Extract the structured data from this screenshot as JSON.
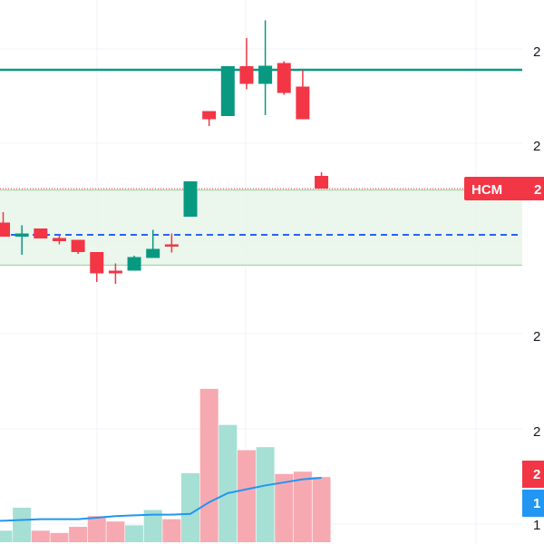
{
  "chart_data": {
    "type": "candlestick",
    "title": "",
    "xlabel": "",
    "ylabel": "",
    "symbol_label": "HCM",
    "price_axis_labels": [
      "2",
      "2",
      "2",
      "2"
    ],
    "volume_axis_labels": [
      "2",
      "1",
      "1"
    ],
    "grid": true,
    "colors": {
      "up": "#089981",
      "down": "#f23645",
      "up_volume": "#a6dfd4",
      "down_volume": "#f7a9b1",
      "horizontal_line": "#089981",
      "dashed_line": "#2962ff",
      "volume_ma": "#2196f3",
      "zone_fill": "#e8f5e9",
      "zone_border": "#a5d6a7",
      "price_line": "#f23645",
      "badge_blue": "#2196f3"
    },
    "price_range": [
      20,
      100
    ],
    "levels": {
      "horizontal_line": 84.6,
      "last_price": 58.4,
      "dashed_line": 48.2,
      "zone_top": 58.1,
      "zone_bottom": 41.5
    },
    "candles": [
      {
        "o": 50.9,
        "h": 53.2,
        "l": 48.0,
        "c": 47.8
      },
      {
        "o": 47.8,
        "h": 50.3,
        "l": 43.8,
        "c": 48.5
      },
      {
        "o": 49.6,
        "h": 49.6,
        "l": 47.4,
        "c": 47.4
      },
      {
        "o": 47.5,
        "h": 48.2,
        "l": 46.1,
        "c": 46.8
      },
      {
        "o": 47.1,
        "h": 47.1,
        "l": 44.0,
        "c": 44.4
      },
      {
        "o": 44.4,
        "h": 44.4,
        "l": 37.8,
        "c": 39.7
      },
      {
        "o": 40.3,
        "h": 41.9,
        "l": 37.4,
        "c": 39.7
      },
      {
        "o": 40.3,
        "h": 43.6,
        "l": 40.3,
        "c": 43.3
      },
      {
        "o": 43.1,
        "h": 49.3,
        "l": 43.1,
        "c": 45.1
      },
      {
        "o": 46.1,
        "h": 48.5,
        "l": 44.3,
        "c": 45.6
      },
      {
        "o": 52.2,
        "h": 60.0,
        "l": 52.2,
        "c": 60.0
      },
      {
        "o": 75.5,
        "h": 75.5,
        "l": 72.2,
        "c": 73.7
      },
      {
        "o": 74.4,
        "h": 85.4,
        "l": 74.4,
        "c": 85.4
      },
      {
        "o": 85.4,
        "h": 91.6,
        "l": 80.3,
        "c": 81.5
      },
      {
        "o": 81.5,
        "h": 95.5,
        "l": 74.6,
        "c": 85.5
      },
      {
        "o": 86.1,
        "h": 86.5,
        "l": 79.1,
        "c": 79.5
      },
      {
        "o": 80.9,
        "h": 84.5,
        "l": 73.7,
        "c": 73.7
      },
      {
        "o": 61.2,
        "h": 62.0,
        "l": 58.4,
        "c": 58.4
      }
    ],
    "volume": [
      {
        "v": 1.5,
        "dir": "up"
      },
      {
        "v": 4.5,
        "dir": "up"
      },
      {
        "v": 1.5,
        "dir": "down"
      },
      {
        "v": 1.2,
        "dir": "down"
      },
      {
        "v": 2.0,
        "dir": "down"
      },
      {
        "v": 3.4,
        "dir": "down"
      },
      {
        "v": 2.7,
        "dir": "down"
      },
      {
        "v": 2.2,
        "dir": "up"
      },
      {
        "v": 4.2,
        "dir": "up"
      },
      {
        "v": 3.0,
        "dir": "down"
      },
      {
        "v": 9.0,
        "dir": "up"
      },
      {
        "v": 20.0,
        "dir": "down"
      },
      {
        "v": 15.3,
        "dir": "up"
      },
      {
        "v": 12.0,
        "dir": "down"
      },
      {
        "v": 12.4,
        "dir": "up"
      },
      {
        "v": 8.9,
        "dir": "down"
      },
      {
        "v": 9.2,
        "dir": "down"
      },
      {
        "v": 8.5,
        "dir": "down"
      }
    ],
    "volume_ma": [
      2.8,
      2.9,
      3.0,
      3.0,
      3.0,
      3.2,
      3.4,
      3.5,
      3.6,
      3.6,
      3.7,
      5.2,
      6.4,
      6.9,
      7.4,
      7.8,
      8.2,
      8.4
    ],
    "volume_range": [
      0,
      22
    ]
  }
}
